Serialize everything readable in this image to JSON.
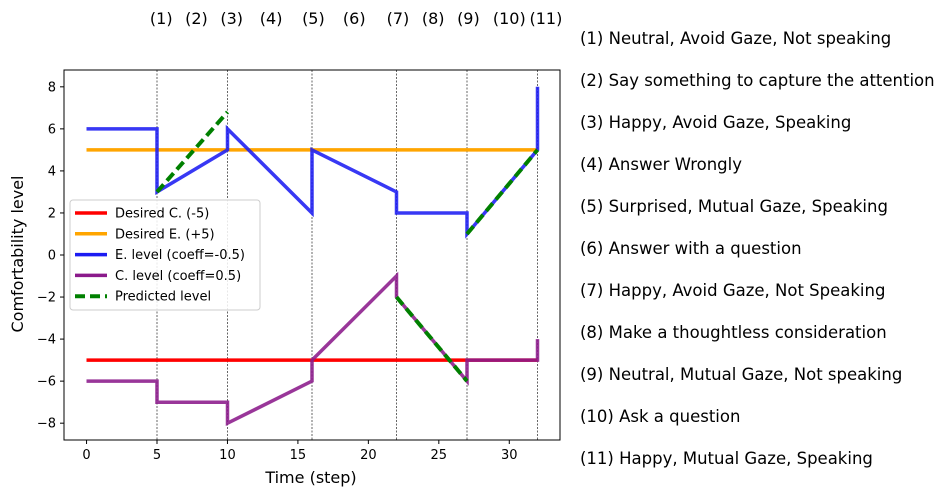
{
  "chart_data": {
    "type": "line",
    "title": "",
    "xlabel": "Time (step)",
    "ylabel": "Comfortability level",
    "xlim": [
      -1.6,
      33.6
    ],
    "ylim": [
      -8.8,
      8.8
    ],
    "xticks": [
      0,
      5,
      10,
      15,
      20,
      25,
      30
    ],
    "yticks": [
      -8,
      -6,
      -4,
      -2,
      0,
      2,
      4,
      6,
      8
    ],
    "grid": false,
    "legend_position": "center-left",
    "event_lines_x": [
      5,
      10,
      16,
      22,
      27,
      32
    ],
    "event_labels": [
      {
        "label": "(1)",
        "x": 5.3
      },
      {
        "label": "(2)",
        "x": 7.8
      },
      {
        "label": "(3)",
        "x": 10.3
      },
      {
        "label": "(4)",
        "x": 13.1
      },
      {
        "label": "(5)",
        "x": 16.1
      },
      {
        "label": "(6)",
        "x": 19.0
      },
      {
        "label": "(7)",
        "x": 22.1
      },
      {
        "label": "(8)",
        "x": 24.6
      },
      {
        "label": "(9)",
        "x": 27.1
      },
      {
        "label": "(10)",
        "x": 30.0
      },
      {
        "label": "(11)",
        "x": 32.6
      }
    ],
    "series": [
      {
        "name": "Desired C. (-5)",
        "color": "#ff0000",
        "dash": false,
        "x": [
          0,
          32
        ],
        "y": [
          -5,
          -5
        ]
      },
      {
        "name": "Desired E. (+5)",
        "color": "#ffa500",
        "dash": false,
        "x": [
          0,
          32
        ],
        "y": [
          5,
          5
        ]
      },
      {
        "name": "E. level (coeff=-0.5)",
        "color": "#1c1cf2",
        "dash": false,
        "x": [
          0,
          5,
          5,
          10,
          10,
          16,
          16,
          22,
          22,
          27,
          27,
          32,
          32
        ],
        "y": [
          6,
          6,
          3,
          5,
          6,
          2,
          5,
          3,
          2,
          2,
          1,
          5,
          8
        ]
      },
      {
        "name": "C. level (coeff=0.5)",
        "color": "#8b1a8b",
        "dash": false,
        "x": [
          0,
          5,
          5,
          10,
          10,
          16,
          16,
          22,
          22,
          27,
          27,
          32,
          32
        ],
        "y": [
          -6,
          -6,
          -7,
          -7,
          -8,
          -6,
          -5,
          -1,
          -2,
          -6,
          -5,
          -5,
          -4
        ]
      },
      {
        "name": "Predicted level",
        "color": "#008000",
        "dash": true,
        "segments": [
          {
            "x": [
              5,
              10
            ],
            "y": [
              3,
              6.8
            ]
          },
          {
            "x": [
              22,
              27
            ],
            "y": [
              -2,
              -6
            ]
          },
          {
            "x": [
              27,
              32
            ],
            "y": [
              1,
              5
            ]
          }
        ]
      }
    ]
  },
  "annotations": [
    "(1) Neutral, Avoid Gaze, Not speaking",
    "(2) Say something to capture the attention",
    "(3) Happy, Avoid Gaze, Speaking",
    "(4) Answer Wrongly",
    "(5) Surprised, Mutual Gaze, Speaking",
    "(6) Answer with a question",
    "(7) Happy, Avoid Gaze, Not Speaking",
    "(8) Make a thoughtless consideration",
    "(9) Neutral, Mutual Gaze, Not speaking",
    "(10) Ask a question",
    "(11) Happy, Mutual Gaze, Speaking"
  ]
}
